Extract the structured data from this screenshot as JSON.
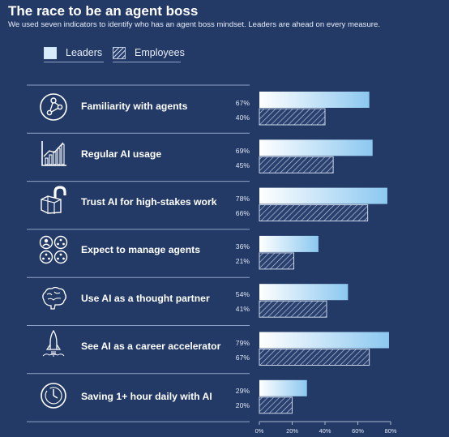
{
  "header": {
    "title": "The race to be an agent boss",
    "subtitle": "We used seven indicators to identify who has an agent boss mindset. Leaders are ahead on every measure."
  },
  "legend": {
    "leaders": "Leaders",
    "employees": "Employees"
  },
  "rows": [
    {
      "label": "Familiarity with agents",
      "icon": "network-nodes-icon",
      "leaders_text": "67%",
      "employees_text": "40%"
    },
    {
      "label": "Regular AI usage",
      "icon": "rising-bar-chart-icon",
      "leaders_text": "69%",
      "employees_text": "45%"
    },
    {
      "label": "Trust AI for high-stakes work",
      "icon": "open-padlock-icon",
      "leaders_text": "78%",
      "employees_text": "66%"
    },
    {
      "label": "Expect to manage agents",
      "icon": "people-and-agents-icon",
      "leaders_text": "36%",
      "employees_text": "21%"
    },
    {
      "label": "Use AI as a thought partner",
      "icon": "brain-icon",
      "leaders_text": "54%",
      "employees_text": "41%"
    },
    {
      "label": "See AI as a career accelerator",
      "icon": "rocket-icon",
      "leaders_text": "79%",
      "employees_text": "67%"
    },
    {
      "label": "Saving 1+ hour daily with AI",
      "icon": "clock-icon",
      "leaders_text": "29%",
      "employees_text": "20%"
    }
  ],
  "axis": {
    "ticks": [
      "0%",
      "20%",
      "40%",
      "60%",
      "80%"
    ]
  },
  "colors": {
    "background": "#233a67",
    "leaders_bar_start": "#ffffff",
    "leaders_bar_end": "#8cc8f0",
    "employees_hatch": "#c9d6ea"
  },
  "chart_data": {
    "type": "bar",
    "orientation": "horizontal",
    "title": "The race to be an agent boss",
    "subtitle": "We used seven indicators to identify who has an agent boss mindset. Leaders are ahead on every measure.",
    "categories": [
      "Familiarity with agents",
      "Regular AI usage",
      "Trust AI for high-stakes work",
      "Expect to manage agents",
      "Use AI as a thought partner",
      "See AI as a career accelerator",
      "Saving 1+ hour daily with AI"
    ],
    "series": [
      {
        "name": "Leaders",
        "values": [
          67,
          69,
          78,
          36,
          54,
          79,
          29
        ]
      },
      {
        "name": "Employees",
        "values": [
          40,
          45,
          66,
          21,
          41,
          67,
          20
        ]
      }
    ],
    "xlim": [
      0,
      80
    ],
    "unit": "%",
    "legend": "top-left",
    "grid": false
  }
}
